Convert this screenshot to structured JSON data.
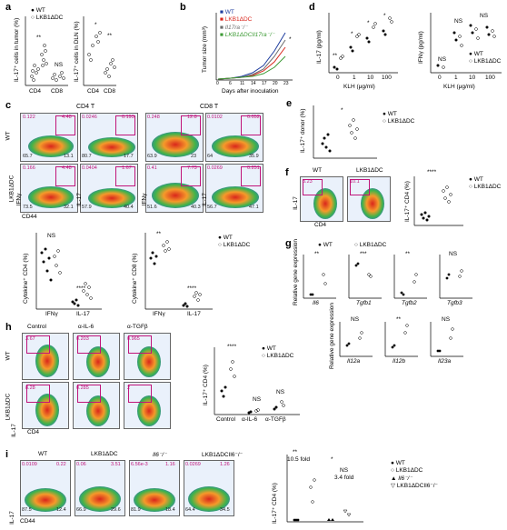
{
  "panels": {
    "a": {
      "letter": "a",
      "ylabel1": "IL-17⁺ cells in tumor (%)",
      "ylabel2": "IL-17⁺ cells in DLN (%)",
      "cats": [
        "CD4",
        "CD8"
      ],
      "sig1": [
        "**",
        "NS"
      ],
      "sig2": [
        "*",
        "**"
      ],
      "legend": [
        "WT",
        "LKB1ΔDC"
      ]
    },
    "b": {
      "letter": "b",
      "ylabel": "Tumor size (mm³)",
      "xlabel": "Days after inoculation",
      "xticks": [
        "0",
        "6",
        "11",
        "14",
        "17",
        "20",
        "23"
      ],
      "legend": [
        "WT",
        "LKB1ΔDC",
        "Il17ra⁻/⁻",
        "LKB1ΔDCIl17ra⁻/⁻"
      ],
      "sig": "*"
    },
    "c": {
      "letter": "c",
      "cd4": "CD4 T",
      "cd8": "CD8 T",
      "row1": "WT",
      "row2": "LKB1ΔDC",
      "xaxis": "CD44",
      "yaxis1": "IFNγ",
      "yaxis2": "IL-17",
      "q_wt": [
        [
          "0.122",
          "4.48"
        ],
        [
          "0.0246",
          "0.193"
        ],
        [
          "0.248",
          "12.8"
        ],
        [
          "0.0102",
          "0.052"
        ]
      ],
      "q_wt_b": [
        [
          "65.7",
          "13.1"
        ],
        [
          "80.7",
          "17.7"
        ],
        [
          "63.9",
          "23"
        ],
        [
          "64",
          "35.9"
        ]
      ],
      "q_lkb": [
        [
          "0.166",
          "4.48"
        ],
        [
          "0.0404",
          "1.67"
        ],
        [
          "0.41",
          "7.73"
        ],
        [
          "0.0269",
          "0.251"
        ]
      ],
      "q_lkb_b": [
        [
          "73.5",
          "32.1"
        ],
        [
          "57.9",
          "40.4"
        ],
        [
          "51.6",
          "40.3"
        ],
        [
          "56.7",
          "47.1"
        ]
      ],
      "bar_ylabel1": "Cytokine⁺ CD4 (%)",
      "bar_ylabel2": "Cytokine⁺ CD8 (%)",
      "bar_cats": [
        "IFNγ",
        "IL-17"
      ],
      "sig1": [
        "NS",
        "****"
      ],
      "sig2": [
        "**",
        "****"
      ],
      "legend": [
        "WT",
        "LKB1ΔDC"
      ]
    },
    "d": {
      "letter": "d",
      "ylabel1": "IL-17 (pg/ml)",
      "ylabel2": "IFNγ (pg/ml)",
      "xlabel": "KLH (μg/ml)",
      "xticks": [
        "0",
        "1",
        "10",
        "100"
      ],
      "sig1": [
        "**",
        "*",
        "*",
        "*"
      ],
      "sig2": [
        "NS",
        "NS",
        "NS"
      ],
      "legend": [
        "WT",
        "LKB1ΔDC"
      ]
    },
    "e": {
      "letter": "e",
      "ylabel": "IL-17⁺ donor (%)",
      "sig": "*",
      "legend": [
        "WT",
        "LKB1ΔDC"
      ]
    },
    "f": {
      "letter": "f",
      "col1": "WT",
      "col2": "LKB1ΔDC",
      "xaxis": "CD4",
      "yaxis": "IL-17",
      "q": [
        "3.23",
        "10.1"
      ],
      "ylabel": "IL-17⁺ CD4 (%)",
      "sig": "****",
      "legend": [
        "WT",
        "LKB1ΔDC"
      ]
    },
    "g": {
      "letter": "g",
      "legend": [
        "WT",
        "LKB1ΔDC"
      ],
      "ylabel": "Relative gene expression",
      "genes_top": [
        "Il6",
        "Tgfb1",
        "Tgfb2",
        "Tgfb3"
      ],
      "sig_top": [
        "**",
        "***",
        "**",
        "NS"
      ],
      "genes_bot": [
        "Il12a",
        "Il12b",
        "Il23a"
      ],
      "sig_bot": [
        "NS",
        "**",
        "NS"
      ]
    },
    "h": {
      "letter": "h",
      "cols": [
        "Control",
        "α-IL-6",
        "α-TGFβ"
      ],
      "rows": [
        "WT",
        "LKB1ΔDC"
      ],
      "xaxis": "CD4",
      "yaxis": "IL-17",
      "q_wt": [
        "3.67",
        "0.203",
        "0.965"
      ],
      "q_lkb": [
        "8.28",
        "0.285",
        "2"
      ],
      "ylabel": "IL-17⁺ CD4 (%)",
      "cats": [
        "Control",
        "α-IL-6",
        "α-TGFβ"
      ],
      "sig": [
        "****",
        "NS",
        "NS"
      ],
      "legend": [
        "WT",
        "LKB1ΔDC"
      ]
    },
    "i": {
      "letter": "i",
      "cols": [
        "WT",
        "LKB1ΔDC",
        "Il6⁻/⁻",
        "LKB1ΔDCIl6⁻/⁻"
      ],
      "xaxis": "CD44",
      "yaxis": "IL-17",
      "q_top": [
        [
          "0.0109",
          "0.22"
        ],
        [
          "0.06",
          "3.51"
        ],
        [
          "6.56e-3",
          "1.16"
        ],
        [
          "0.0269",
          "1.26"
        ]
      ],
      "q_bot": [
        [
          "87.5",
          "12.4"
        ],
        [
          "66.9",
          "29.6"
        ],
        [
          "81.9",
          "18.4"
        ],
        [
          "64.4",
          "34.5"
        ]
      ],
      "ylabel": "IL-17⁺ CD4 (%)",
      "ann": [
        "**",
        "10.5 fold",
        "*",
        "NS",
        "3.4 fold"
      ],
      "legend": [
        "WT",
        "LKB1ΔDC",
        "Il6⁻/⁻",
        "LKB1ΔDCIl6⁻/⁻"
      ]
    }
  }
}
